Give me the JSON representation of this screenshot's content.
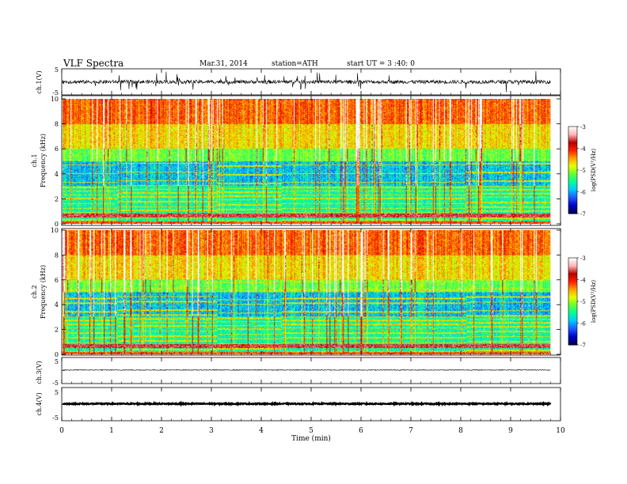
{
  "header": {
    "title": "VLF Spectra",
    "date": "Mar.31, 2014",
    "station": "station=ATH",
    "start_ut": "start UT =  3 :40: 0"
  },
  "colorbar": {
    "label": "log(PSD(V²/Hz)",
    "ticks": [
      "-3",
      "-4",
      "-5",
      "-6",
      "-7"
    ],
    "range": [
      -7,
      -3
    ],
    "colors": [
      "#000050",
      "#0000c8",
      "#1e5aff",
      "#00c8ff",
      "#00ff9b",
      "#64ff32",
      "#e6ff00",
      "#ffa000",
      "#ff1e00",
      "#b40000",
      "#ffb4b4",
      "#ffffff"
    ]
  },
  "chart_data": [
    {
      "type": "line",
      "name": "ch1-waveform",
      "ylabel": "ch.1(V)",
      "ylim": [
        -5,
        5
      ],
      "yticks": [
        "5",
        "-5"
      ],
      "description_level": "noisy waveform near 0 V with spikes"
    },
    {
      "type": "heatmap",
      "name": "ch1-spectrogram",
      "ylabel_top": "ch.1",
      "ylabel": "Frequency (kHz)",
      "ylim": [
        0,
        10
      ],
      "yticks": [
        "0",
        "2",
        "4",
        "6",
        "8",
        "10"
      ]
    },
    {
      "type": "heatmap",
      "name": "ch2-spectrogram",
      "ylabel_top": "ch.2",
      "ylabel": "Frequency (kHz)",
      "ylim": [
        0,
        10
      ],
      "yticks": [
        "0",
        "2",
        "4",
        "6",
        "8",
        "10"
      ]
    },
    {
      "type": "line",
      "name": "ch3-waveform",
      "ylabel": "ch.3(V)",
      "ylim": [
        -5,
        5
      ],
      "yticks": [
        "5",
        "-5"
      ],
      "value_level": 0.2
    },
    {
      "type": "line",
      "name": "ch4-waveform",
      "ylabel": "ch.4(V)",
      "ylim": [
        -5,
        5
      ],
      "yticks": [
        "5",
        "-5"
      ],
      "value_level": 0.1
    }
  ],
  "xaxis": {
    "xlabel": "Time (min)",
    "xlim": [
      0,
      10
    ],
    "data_end": 9.8,
    "ticks": [
      "0",
      "1",
      "2",
      "3",
      "4",
      "5",
      "6",
      "7",
      "8",
      "9",
      "10"
    ]
  }
}
